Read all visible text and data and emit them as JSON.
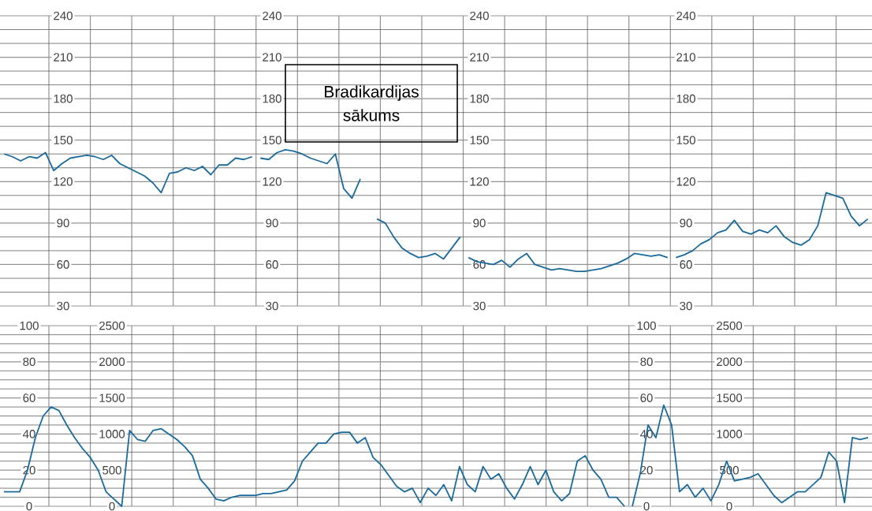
{
  "chart_data": [
    {
      "type": "line",
      "categories": [
        null,
        null,
        null,
        null,
        null,
        null,
        null,
        null,
        null,
        null,
        null,
        null,
        null,
        null,
        null,
        null,
        null,
        null,
        null,
        null,
        null,
        null,
        null,
        null,
        null,
        null,
        null,
        null,
        null,
        null,
        null
      ],
      "values": [
        140,
        138,
        135,
        138,
        137,
        141,
        128,
        133,
        137,
        138,
        139,
        138,
        136,
        139,
        133,
        130,
        127,
        124,
        119,
        112,
        126,
        127,
        130,
        128,
        131,
        125,
        132,
        132,
        137,
        136,
        138
      ],
      "color": "#1b6a9c",
      "ylim": [
        30,
        240
      ],
      "yticks": [
        30,
        60,
        90,
        120,
        150,
        180,
        210,
        240
      ],
      "grid": true
    },
    {
      "type": "line",
      "categories": [
        null,
        null,
        null,
        null,
        null,
        null,
        null,
        null,
        null,
        null,
        null,
        null,
        null,
        null,
        null,
        null,
        null,
        null,
        null,
        null,
        null,
        null,
        null,
        null,
        null
      ],
      "values": [
        137,
        136,
        141,
        143,
        142,
        140,
        137,
        135,
        133,
        140,
        115,
        108,
        122,
        null,
        93,
        90,
        80,
        72,
        68,
        65,
        66,
        68,
        64,
        72,
        80
      ],
      "color": "#1b6a9c",
      "ylim": [
        30,
        240
      ],
      "yticks": [
        30,
        60,
        90,
        120,
        150,
        180,
        210,
        240
      ],
      "grid": true,
      "annotations": [
        "Bradikardijas sākums"
      ]
    },
    {
      "type": "line",
      "categories": [
        null,
        null,
        null,
        null,
        null,
        null,
        null,
        null,
        null,
        null,
        null,
        null,
        null,
        null,
        null,
        null,
        null,
        null,
        null,
        null,
        null,
        null,
        null,
        null,
        null
      ],
      "values": [
        65,
        62,
        61,
        60,
        63,
        58,
        64,
        68,
        60,
        58,
        56,
        57,
        56,
        55,
        55,
        56,
        57,
        59,
        61,
        64,
        68,
        67,
        66,
        67,
        65
      ],
      "color": "#1b6a9c",
      "ylim": [
        30,
        240
      ],
      "yticks": [
        30,
        60,
        90,
        120,
        150,
        180,
        210,
        240
      ],
      "grid": true
    },
    {
      "type": "line",
      "categories": [
        null,
        null,
        null,
        null,
        null,
        null,
        null,
        null,
        null,
        null,
        null,
        null,
        null,
        null,
        null,
        null,
        null,
        null,
        null,
        null,
        null,
        null,
        null,
        null
      ],
      "values": [
        65,
        67,
        70,
        75,
        78,
        83,
        85,
        92,
        84,
        82,
        85,
        83,
        88,
        80,
        76,
        74,
        78,
        88,
        112,
        110,
        108,
        95,
        88,
        93
      ],
      "color": "#1b6a9c",
      "ylim": [
        30,
        240
      ],
      "yticks": [
        30,
        60,
        90,
        120,
        150,
        180,
        210,
        240
      ],
      "grid": true
    },
    {
      "type": "line",
      "categories": [
        null,
        null,
        null,
        null,
        null,
        null,
        null,
        null,
        null,
        null,
        null,
        null,
        null,
        null,
        null,
        null,
        null,
        null,
        null,
        null,
        null,
        null,
        null,
        null,
        null,
        null,
        null,
        null,
        null,
        null,
        null,
        null,
        null,
        null,
        null,
        null,
        null,
        null,
        null,
        null,
        null,
        null,
        null,
        null,
        null,
        null,
        null,
        null,
        null,
        null,
        null,
        null,
        null,
        null,
        null,
        null,
        null,
        null,
        null,
        null,
        null,
        null,
        null,
        null,
        null,
        null,
        null,
        null,
        null,
        null,
        null,
        null,
        null,
        null,
        null,
        null,
        null,
        null,
        null,
        null
      ],
      "values": [
        8,
        8,
        8,
        20,
        38,
        50,
        55,
        53,
        45,
        38,
        32,
        27,
        20,
        8,
        4,
        0,
        42,
        37,
        36,
        42,
        43,
        40,
        37,
        33,
        28,
        15,
        10,
        4,
        3,
        5,
        6,
        6,
        6,
        7,
        7,
        8,
        9,
        14,
        25,
        30,
        35,
        35,
        40,
        41,
        41,
        35,
        38,
        27,
        23,
        17,
        11,
        8,
        10,
        2,
        10,
        6,
        12,
        3,
        22,
        12,
        8,
        22,
        15,
        18,
        10,
        4,
        12,
        22,
        12,
        20,
        8,
        3,
        7,
        25,
        28,
        20,
        15,
        5,
        5,
        0
      ],
      "color": "#1b6a9c",
      "ylim": [
        0,
        100
      ],
      "yticks": [
        0,
        20,
        40,
        60,
        80,
        100
      ],
      "y2lim": [
        0,
        2500
      ],
      "y2ticks": [
        0,
        500,
        1000,
        1500,
        2000,
        2500
      ],
      "grid": true
    },
    {
      "type": "line",
      "categories": [
        null,
        null,
        null,
        null,
        null,
        null,
        null,
        null,
        null,
        null,
        null,
        null,
        null,
        null,
        null,
        null,
        null,
        null,
        null,
        null,
        null,
        null,
        null,
        null,
        null,
        null,
        null,
        null,
        null,
        null,
        null
      ],
      "values": [
        0,
        18,
        45,
        38,
        56,
        45,
        8,
        12,
        5,
        10,
        3,
        12,
        25,
        14,
        15,
        16,
        18,
        12,
        6,
        2,
        5,
        8,
        8,
        12,
        16,
        30,
        25,
        2,
        38,
        37,
        38
      ],
      "color": "#1b6a9c",
      "ylim": [
        0,
        100
      ],
      "yticks": [
        0,
        20,
        40,
        60,
        80,
        100
      ],
      "y2lim": [
        0,
        2500
      ],
      "y2ticks": [
        0,
        500,
        1000,
        1500,
        2000,
        2500
      ],
      "grid": true
    }
  ]
}
